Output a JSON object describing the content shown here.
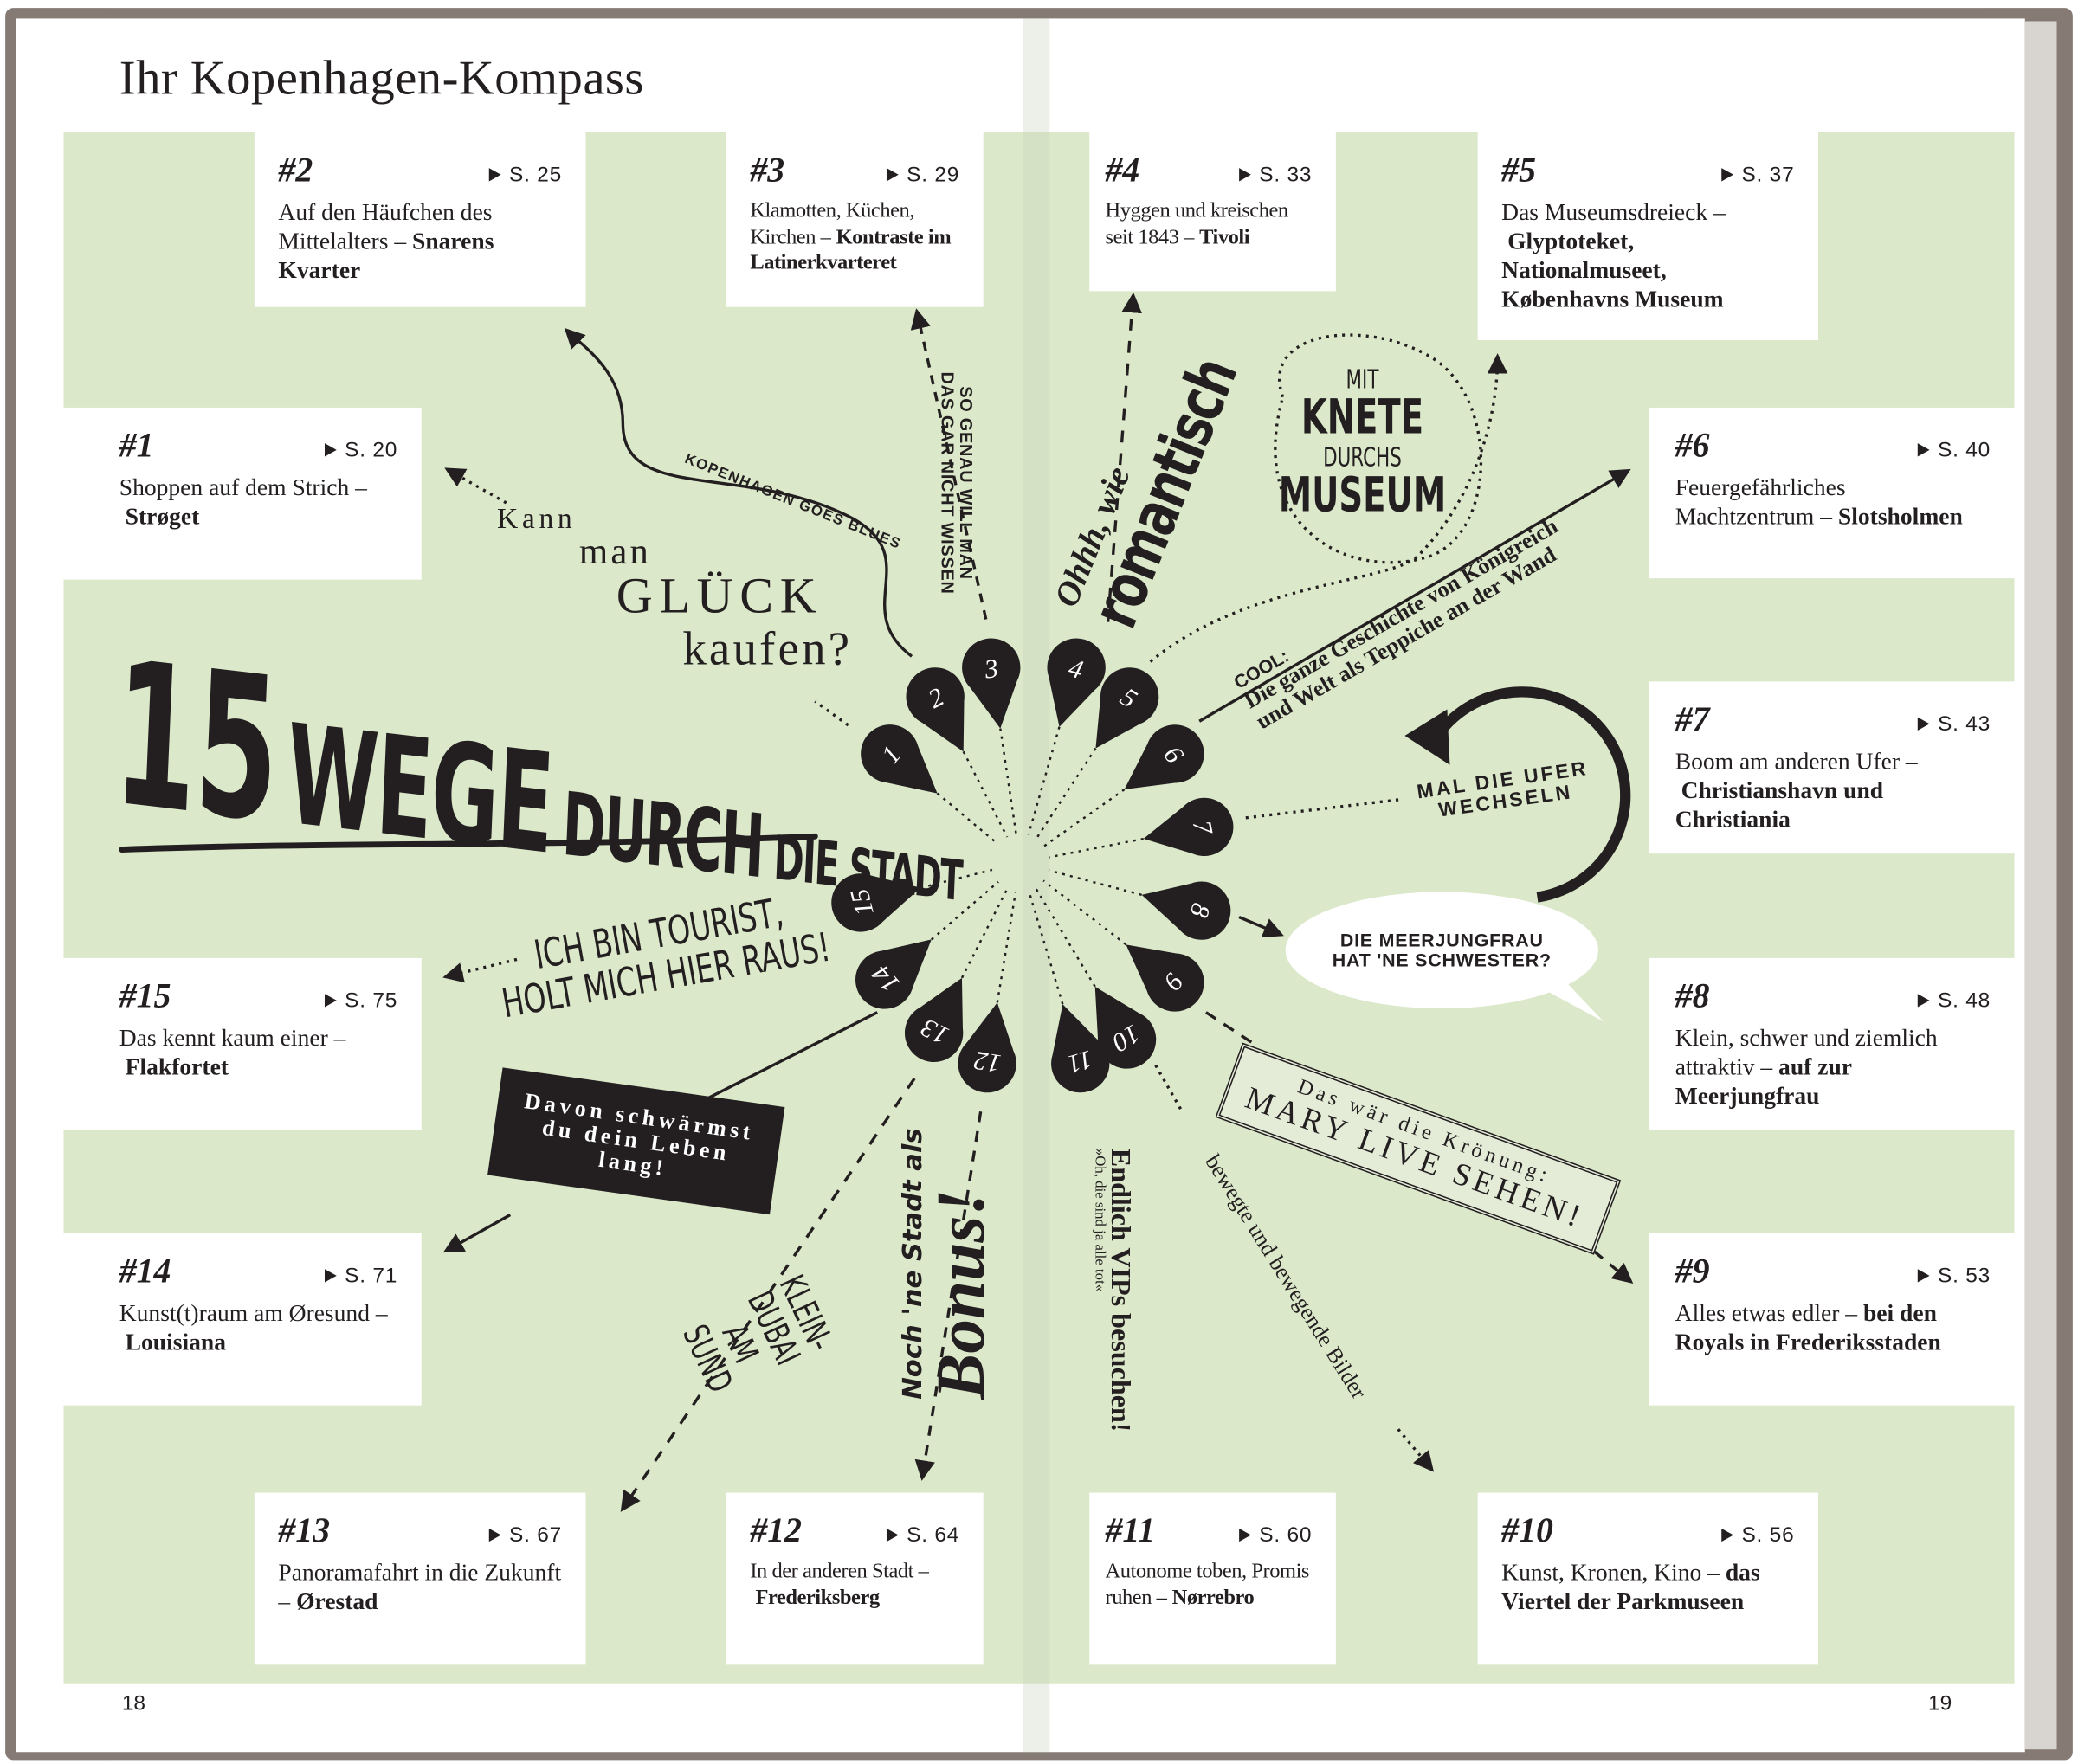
{
  "header": {
    "title": "Ihr Kopenhagen-Kompass"
  },
  "headline": {
    "number": "15",
    "words": [
      "WEGE",
      "DURCH",
      "DIE",
      "STADT"
    ]
  },
  "entries": [
    {
      "label": "#1",
      "page": "S. 20",
      "text": "Shoppen auf dem Strich –",
      "highlight": "Strøget"
    },
    {
      "label": "#2",
      "page": "S. 25",
      "text": "Auf den Häufchen des Mittelalters –",
      "highlight": "Snarens Kvarter"
    },
    {
      "label": "#3",
      "page": "S. 29",
      "text": "Klamotten, Küchen, Kirchen –",
      "highlight": "Kontraste im Latinerkvarteret"
    },
    {
      "label": "#4",
      "page": "S. 33",
      "text": "Hyggen und kreischen seit 1843 –",
      "highlight": "Tivoli"
    },
    {
      "label": "#5",
      "page": "S. 37",
      "text": "Das Museumsdreieck –",
      "highlight": "Glyptoteket, Nationalmuseet, Københavns Museum"
    },
    {
      "label": "#6",
      "page": "S. 40",
      "text": "Feuergefährliches Machtzentrum –",
      "highlight": "Slotsholmen"
    },
    {
      "label": "#7",
      "page": "S. 43",
      "text": "Boom am anderen Ufer –",
      "highlight": "Christianshavn und Christiania"
    },
    {
      "label": "#8",
      "page": "S. 48",
      "text": "Klein, schwer und ziemlich attraktiv –",
      "highlight": "auf zur Meerjungfrau"
    },
    {
      "label": "#9",
      "page": "S. 53",
      "text": "Alles etwas edler –",
      "highlight": "bei den Royals in Frederiksstaden"
    },
    {
      "label": "#10",
      "page": "S. 56",
      "text": "Kunst, Kronen, Kino –",
      "highlight": "das Viertel der Parkmuseen"
    },
    {
      "label": "#11",
      "page": "S. 60",
      "text": "Autonome toben, Promis ruhen –",
      "highlight": "Nørrebro"
    },
    {
      "label": "#12",
      "page": "S. 64",
      "text": "In der anderen Stadt –",
      "highlight": "Frederiksberg"
    },
    {
      "label": "#13",
      "page": "S. 67",
      "text": "Panoramafahrt in die Zukunft –",
      "highlight": "Ørestad"
    },
    {
      "label": "#14",
      "page": "S. 71",
      "text": "Kunst(t)raum am Øresund –",
      "highlight": "Louisiana"
    },
    {
      "label": "#15",
      "page": "S. 75",
      "text": "Das kennt kaum einer –",
      "highlight": "Flakfortet"
    }
  ],
  "pins": [
    "1",
    "2",
    "3",
    "4",
    "5",
    "6",
    "7",
    "8",
    "9",
    "10",
    "11",
    "12",
    "13",
    "14",
    "15"
  ],
  "callouts": [
    {
      "lines": [
        "Kann",
        "man",
        "GLÜCK",
        "kaufen?"
      ]
    },
    {
      "lines": [
        "KOPENHAGEN GOES BLUES"
      ]
    },
    {
      "lines": [
        "SO GENAU WILL MAN",
        "DAS GAR NICHT WISSEN"
      ]
    },
    {
      "lines": [
        "Ohhh, wie",
        "romantisch"
      ]
    },
    {
      "lines": [
        "MIT",
        "KNETE",
        "DURCHS",
        "MUSEUM"
      ]
    },
    {
      "lines": [
        "COOL:",
        "Die ganze Geschichte von Königreich",
        "und Welt als Teppiche an der Wand"
      ]
    },
    {
      "lines": [
        "MAL DIE UFER",
        "WECHSELN"
      ]
    },
    {
      "lines": [
        "DIE MEERJUNGFRAU",
        "HAT 'NE SCHWESTER?"
      ]
    },
    {
      "lines": [
        "Das wär die Krönung:",
        "MARY LIVE SEHEN!"
      ]
    },
    {
      "lines": [
        "bewegte und bewegende Bilder"
      ]
    },
    {
      "lines": [
        "Endlich VIPs besuchen!",
        "»Oh, die sind ja alle tot«"
      ]
    },
    {
      "lines": [
        "Noch 'ne Stadt als",
        "Bonus!"
      ]
    },
    {
      "lines": [
        "KLEIN-",
        "DUBAI",
        "AM",
        "SUND"
      ]
    },
    {
      "lines": [
        "Davon schwärmst",
        "du dein Leben",
        "lang!"
      ]
    },
    {
      "lines": [
        "ICH BIN TOURIST,",
        "HOLT MICH HIER RAUS!"
      ]
    }
  ],
  "footer": {
    "left_page": "18",
    "right_page": "19"
  }
}
